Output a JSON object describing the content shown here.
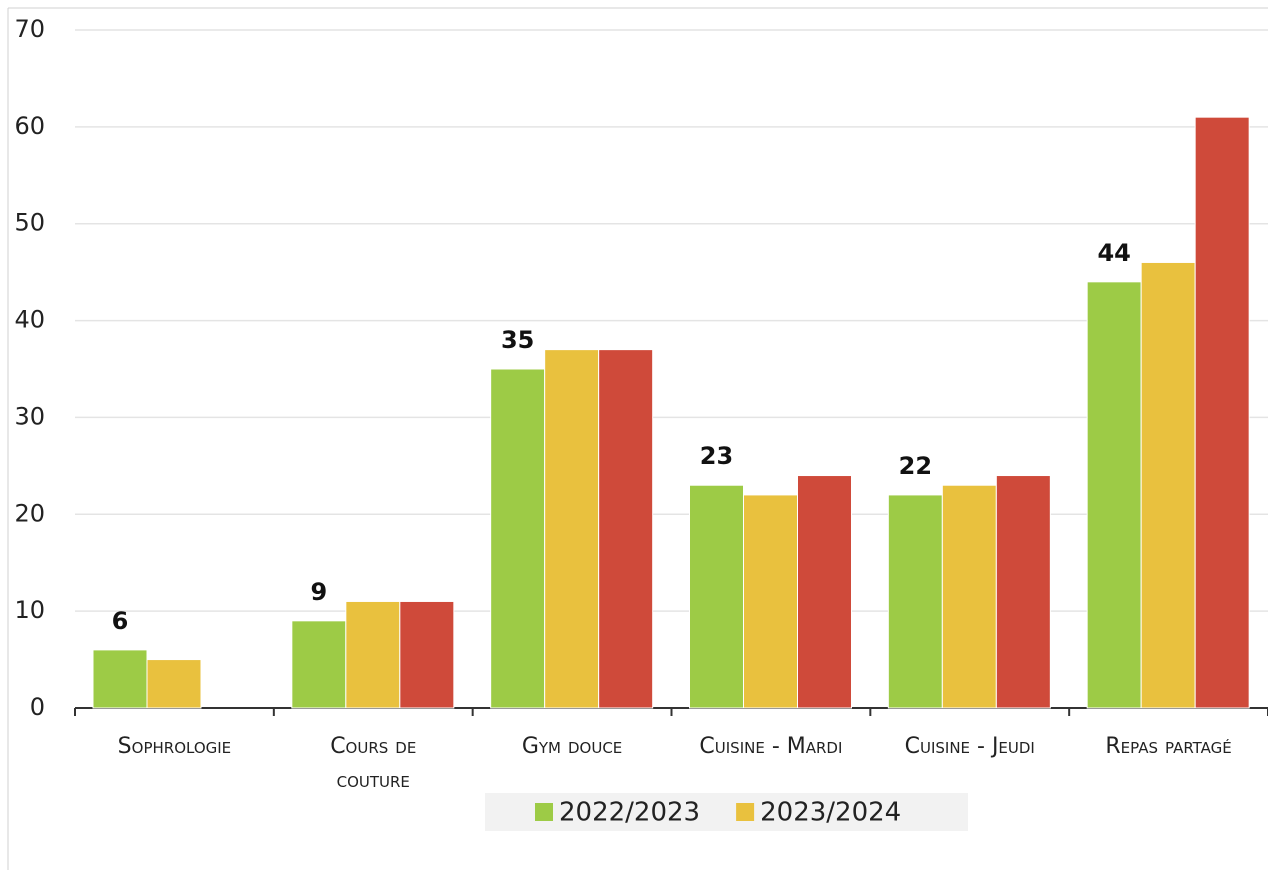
{
  "chart_data": {
    "type": "bar",
    "categories": [
      "Sophrologie",
      "Cours de couture",
      "Gym douce",
      "Cuisine - Mardi",
      "Cuisine - Jeudi",
      "Repas partagé"
    ],
    "series": [
      {
        "name": "2022/2023",
        "color": "#9dcb46",
        "values": [
          6,
          9,
          35,
          23,
          22,
          44
        ]
      },
      {
        "name": "2023/2024",
        "color": "#e9c13e",
        "values": [
          5,
          11,
          37,
          22,
          23,
          46
        ]
      },
      {
        "color": "#cf4a3a",
        "values": [
          null,
          11,
          37,
          24,
          24,
          61
        ]
      }
    ],
    "data_labels_series": 0,
    "ylim": [
      0,
      70
    ],
    "yticks": [
      0,
      10,
      20,
      30,
      40,
      50,
      60,
      70
    ],
    "grid": true
  }
}
